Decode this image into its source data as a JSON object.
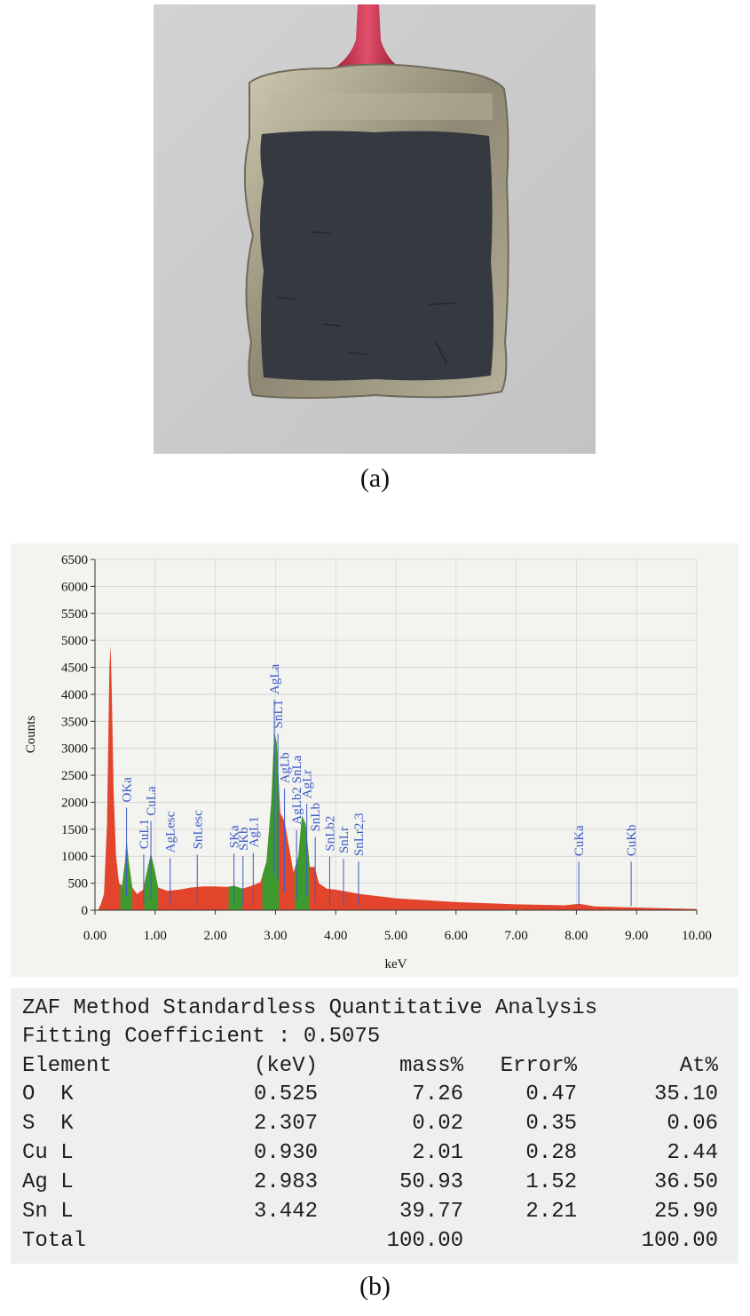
{
  "captions": {
    "a": "(a)",
    "b": "(b)"
  },
  "chart_data": {
    "type": "area",
    "xlabel": "keV",
    "ylabel": "Counts",
    "xlim": [
      0,
      10
    ],
    "ylim": [
      0,
      6500
    ],
    "x_ticks": [
      "0.00",
      "1.00",
      "2.00",
      "3.00",
      "4.00",
      "5.00",
      "6.00",
      "7.00",
      "8.00",
      "9.00",
      "10.00"
    ],
    "y_ticks": [
      "0",
      "500",
      "1000",
      "1500",
      "2000",
      "2500",
      "3000",
      "3500",
      "4000",
      "4500",
      "5000",
      "5500",
      "6000",
      "6500"
    ],
    "colors": {
      "spectrum": "#e2452c",
      "peak_fill": "#3e9a2e",
      "marker": "#3a5ac8"
    },
    "spectrum": [
      [
        0.05,
        0
      ],
      [
        0.1,
        120
      ],
      [
        0.15,
        300
      ],
      [
        0.2,
        1600
      ],
      [
        0.24,
        4500
      ],
      [
        0.26,
        4900
      ],
      [
        0.28,
        4000
      ],
      [
        0.31,
        2200
      ],
      [
        0.35,
        1000
      ],
      [
        0.4,
        500
      ],
      [
        0.45,
        450
      ],
      [
        0.5,
        900
      ],
      [
        0.525,
        1300
      ],
      [
        0.56,
        900
      ],
      [
        0.62,
        420
      ],
      [
        0.7,
        300
      ],
      [
        0.8,
        380
      ],
      [
        0.88,
        800
      ],
      [
        0.93,
        1050
      ],
      [
        0.98,
        800
      ],
      [
        1.05,
        420
      ],
      [
        1.2,
        360
      ],
      [
        1.4,
        380
      ],
      [
        1.6,
        420
      ],
      [
        1.8,
        440
      ],
      [
        2.0,
        440
      ],
      [
        2.2,
        430
      ],
      [
        2.31,
        450
      ],
      [
        2.45,
        400
      ],
      [
        2.6,
        450
      ],
      [
        2.75,
        520
      ],
      [
        2.85,
        900
      ],
      [
        2.93,
        2000
      ],
      [
        2.98,
        3300
      ],
      [
        3.02,
        3100
      ],
      [
        3.08,
        1800
      ],
      [
        3.15,
        1650
      ],
      [
        3.22,
        1200
      ],
      [
        3.3,
        700
      ],
      [
        3.38,
        1000
      ],
      [
        3.44,
        1750
      ],
      [
        3.5,
        1600
      ],
      [
        3.57,
        800
      ],
      [
        3.65,
        800
      ],
      [
        3.72,
        500
      ],
      [
        3.85,
        400
      ],
      [
        4.0,
        380
      ],
      [
        4.4,
        300
      ],
      [
        5.0,
        220
      ],
      [
        6.0,
        150
      ],
      [
        7.0,
        110
      ],
      [
        7.8,
        90
      ],
      [
        8.05,
        120
      ],
      [
        8.3,
        70
      ],
      [
        9.0,
        50
      ],
      [
        10.0,
        20
      ]
    ],
    "highlighted_regions": [
      [
        0.42,
        0.62
      ],
      [
        0.82,
        1.05
      ],
      [
        2.22,
        2.45
      ],
      [
        2.78,
        3.06
      ],
      [
        3.32,
        3.56
      ]
    ],
    "peak_labels": [
      {
        "name": "OKa",
        "keV": 0.525
      },
      {
        "name": "CuL1",
        "keV": 0.81
      },
      {
        "name": "CuLa",
        "keV": 0.93
      },
      {
        "name": "AgLesc",
        "keV": 1.25
      },
      {
        "name": "SnLesc",
        "keV": 1.7
      },
      {
        "name": "SKa",
        "keV": 2.31
      },
      {
        "name": "SKb",
        "keV": 2.46
      },
      {
        "name": "AgL1",
        "keV": 2.63
      },
      {
        "name": "AgLa",
        "keV": 2.98
      },
      {
        "name": "SnL1",
        "keV": 3.04
      },
      {
        "name": "AgLb",
        "keV": 3.15
      },
      {
        "name": "AgLb2 SnLa",
        "keV": 3.35
      },
      {
        "name": "AgLr",
        "keV": 3.52
      },
      {
        "name": "SnLb",
        "keV": 3.66
      },
      {
        "name": "SnLb2",
        "keV": 3.9
      },
      {
        "name": "SnLr",
        "keV": 4.13
      },
      {
        "name": "SnLr2,3",
        "keV": 4.38
      },
      {
        "name": "CuKa",
        "keV": 8.04
      },
      {
        "name": "CuKb",
        "keV": 8.91
      }
    ]
  },
  "zaf": {
    "title": "ZAF Method Standardless Quantitative Analysis",
    "fitting": "Fitting Coefficient : 0.5075",
    "headers": [
      "Element",
      "(keV)",
      "mass%",
      "Error%",
      "At%"
    ],
    "rows": [
      [
        "O  K",
        "0.525",
        "7.26",
        "0.47",
        "35.10"
      ],
      [
        "S  K",
        "2.307",
        "0.02",
        "0.35",
        "0.06"
      ],
      [
        "Cu L",
        "0.930",
        "2.01",
        "0.28",
        "2.44"
      ],
      [
        "Ag L",
        "2.983",
        "50.93",
        "1.52",
        "36.50"
      ],
      [
        "Sn L",
        "3.442",
        "39.77",
        "2.21",
        "25.90"
      ],
      [
        "Total",
        "",
        "100.00",
        "",
        "100.00"
      ]
    ]
  }
}
